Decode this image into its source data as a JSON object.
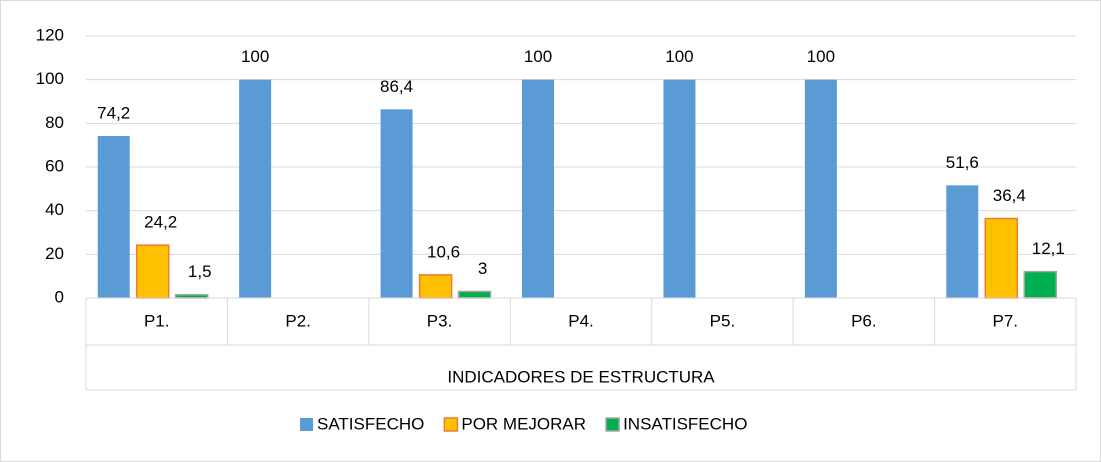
{
  "chart_data": {
    "type": "bar",
    "categories": [
      "P1.",
      "P2.",
      "P3.",
      "P4.",
      "P5.",
      "P6.",
      "P7."
    ],
    "series": [
      {
        "name": "SATISFECHO",
        "color": "#5b9bd5",
        "values": [
          74.2,
          100,
          86.4,
          100,
          100,
          100,
          51.6
        ],
        "value_labels": [
          "74,2",
          "100",
          "86,4",
          "100",
          "100",
          "100",
          "51,6"
        ]
      },
      {
        "name": "POR MEJORAR",
        "color": "#ffc000",
        "values": [
          24.2,
          null,
          10.6,
          null,
          null,
          null,
          36.4
        ],
        "value_labels": [
          "24,2",
          null,
          "10,6",
          null,
          null,
          null,
          "36,4"
        ]
      },
      {
        "name": "INSATISFECHO",
        "color": "#00b050",
        "values": [
          1.5,
          null,
          3,
          null,
          null,
          null,
          12.1
        ],
        "value_labels": [
          "1,5",
          null,
          "3",
          null,
          null,
          null,
          "12,1"
        ]
      }
    ],
    "xlabel": "INDICADORES DE ESTRUCTURA",
    "ylim": [
      0,
      120
    ],
    "yticks": [
      0,
      20,
      40,
      60,
      80,
      100,
      120
    ],
    "grid": true,
    "legend": "bottom"
  }
}
